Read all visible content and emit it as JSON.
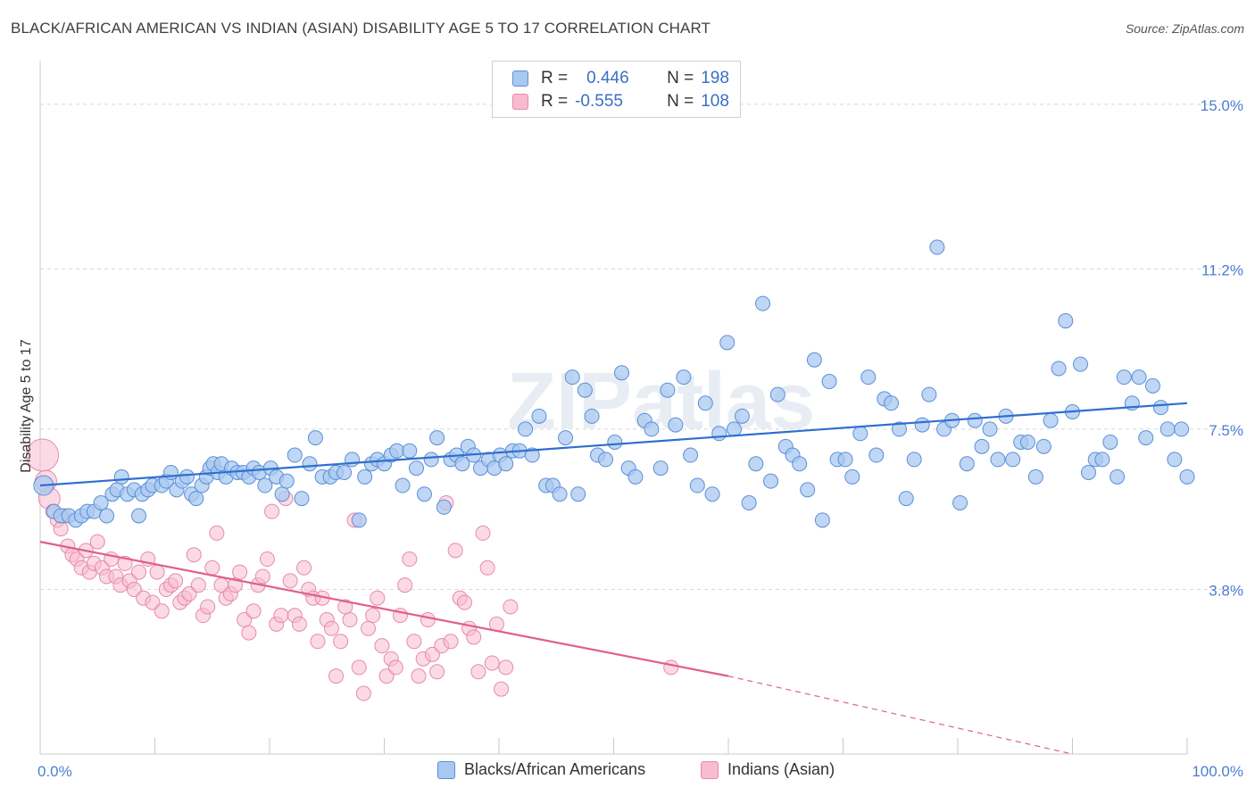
{
  "title": "BLACK/AFRICAN AMERICAN VS INDIAN (ASIAN) DISABILITY AGE 5 TO 17 CORRELATION CHART",
  "source": "Source: ZipAtlas.com",
  "watermark": "ZIPatlas",
  "legend": {
    "rows": [
      {
        "r_label": "R =",
        "r_value": "0.446",
        "n_label": "N =",
        "n_value": "198"
      },
      {
        "r_label": "R =",
        "r_value": "-0.555",
        "n_label": "N =",
        "n_value": "108"
      }
    ]
  },
  "bottom_legend": [
    "Blacks/African Americans",
    "Indians (Asian)"
  ],
  "colors": {
    "blue_fill": "#a9c8f0",
    "blue_stroke": "#5a8fd8",
    "blue_line": "#2f6fcf",
    "pink_fill": "#f7bcd0",
    "pink_stroke": "#e68aa8",
    "pink_line": "#e0608a",
    "tick_text": "#4a7fd0",
    "grid": "#d8d8d8"
  },
  "chart_data": {
    "type": "scatter",
    "title": "BLACK/AFRICAN AMERICAN VS INDIAN (ASIAN) DISABILITY AGE 5 TO 17 CORRELATION CHART",
    "xlabel": "",
    "ylabel": "Disability Age 5 to 17",
    "xlim": [
      0,
      100
    ],
    "ylim": [
      0,
      15.8
    ],
    "x_ticks": [
      "0.0%",
      "100.0%"
    ],
    "y_ticks": [
      {
        "value": 3.8,
        "label": "3.8%"
      },
      {
        "value": 7.5,
        "label": "7.5%"
      },
      {
        "value": 11.2,
        "label": "11.2%"
      },
      {
        "value": 15.0,
        "label": "15.0%"
      }
    ],
    "grid": true,
    "legend_position": "top-center",
    "series": [
      {
        "name": "Blacks/African Americans",
        "R": 0.446,
        "N": 198,
        "trend": {
          "x": [
            0,
            100
          ],
          "y": [
            6.2,
            8.1
          ]
        },
        "points": [
          [
            0.3,
            6.2
          ],
          [
            1.2,
            5.6
          ],
          [
            1.8,
            5.5
          ],
          [
            2.5,
            5.5
          ],
          [
            3.1,
            5.4
          ],
          [
            3.6,
            5.5
          ],
          [
            4.1,
            5.6
          ],
          [
            4.7,
            5.6
          ],
          [
            5.3,
            5.8
          ],
          [
            5.8,
            5.5
          ],
          [
            6.3,
            6.0
          ],
          [
            6.7,
            6.1
          ],
          [
            7.1,
            6.4
          ],
          [
            7.6,
            6.0
          ],
          [
            8.2,
            6.1
          ],
          [
            8.6,
            5.5
          ],
          [
            8.9,
            6.0
          ],
          [
            9.4,
            6.1
          ],
          [
            9.8,
            6.2
          ],
          [
            10.6,
            6.2
          ],
          [
            11.0,
            6.3
          ],
          [
            11.4,
            6.5
          ],
          [
            11.9,
            6.1
          ],
          [
            12.4,
            6.3
          ],
          [
            12.8,
            6.4
          ],
          [
            13.2,
            6.0
          ],
          [
            13.6,
            5.9
          ],
          [
            14.1,
            6.2
          ],
          [
            14.5,
            6.4
          ],
          [
            14.8,
            6.6
          ],
          [
            15.1,
            6.7
          ],
          [
            15.5,
            6.5
          ],
          [
            15.8,
            6.7
          ],
          [
            16.2,
            6.4
          ],
          [
            16.7,
            6.6
          ],
          [
            17.2,
            6.5
          ],
          [
            17.7,
            6.5
          ],
          [
            18.2,
            6.4
          ],
          [
            18.6,
            6.6
          ],
          [
            19.1,
            6.5
          ],
          [
            19.6,
            6.2
          ],
          [
            20.1,
            6.6
          ],
          [
            20.6,
            6.4
          ],
          [
            21.1,
            6.0
          ],
          [
            21.5,
            6.3
          ],
          [
            22.2,
            6.9
          ],
          [
            22.8,
            5.9
          ],
          [
            23.5,
            6.7
          ],
          [
            24.0,
            7.3
          ],
          [
            24.6,
            6.4
          ],
          [
            25.3,
            6.4
          ],
          [
            25.8,
            6.5
          ],
          [
            26.5,
            6.5
          ],
          [
            27.2,
            6.8
          ],
          [
            27.8,
            5.4
          ],
          [
            28.3,
            6.4
          ],
          [
            28.9,
            6.7
          ],
          [
            29.4,
            6.8
          ],
          [
            30.0,
            6.7
          ],
          [
            30.6,
            6.9
          ],
          [
            31.1,
            7.0
          ],
          [
            31.6,
            6.2
          ],
          [
            32.2,
            7.0
          ],
          [
            32.8,
            6.6
          ],
          [
            33.5,
            6.0
          ],
          [
            34.1,
            6.8
          ],
          [
            34.6,
            7.3
          ],
          [
            35.2,
            5.7
          ],
          [
            35.8,
            6.8
          ],
          [
            36.3,
            6.9
          ],
          [
            36.8,
            6.7
          ],
          [
            37.3,
            7.1
          ],
          [
            37.8,
            6.9
          ],
          [
            38.4,
            6.6
          ],
          [
            39.1,
            6.8
          ],
          [
            39.6,
            6.6
          ],
          [
            40.1,
            6.9
          ],
          [
            40.6,
            6.7
          ],
          [
            41.2,
            7.0
          ],
          [
            41.8,
            7.0
          ],
          [
            42.3,
            7.5
          ],
          [
            42.9,
            6.9
          ],
          [
            43.5,
            7.8
          ],
          [
            44.1,
            6.2
          ],
          [
            44.7,
            6.2
          ],
          [
            45.3,
            6.0
          ],
          [
            45.8,
            7.3
          ],
          [
            46.4,
            8.7
          ],
          [
            46.9,
            6.0
          ],
          [
            47.5,
            8.4
          ],
          [
            48.1,
            7.8
          ],
          [
            48.6,
            6.9
          ],
          [
            49.3,
            6.8
          ],
          [
            50.1,
            7.2
          ],
          [
            50.7,
            8.8
          ],
          [
            51.3,
            6.6
          ],
          [
            51.9,
            6.4
          ],
          [
            52.7,
            7.7
          ],
          [
            53.3,
            7.5
          ],
          [
            54.1,
            6.6
          ],
          [
            54.7,
            8.4
          ],
          [
            55.4,
            7.6
          ],
          [
            56.1,
            8.7
          ],
          [
            56.7,
            6.9
          ],
          [
            57.3,
            6.2
          ],
          [
            58.0,
            8.1
          ],
          [
            58.6,
            6.0
          ],
          [
            59.2,
            7.4
          ],
          [
            59.9,
            9.5
          ],
          [
            60.5,
            7.5
          ],
          [
            61.2,
            7.8
          ],
          [
            61.8,
            5.8
          ],
          [
            62.4,
            6.7
          ],
          [
            63.0,
            10.4
          ],
          [
            63.7,
            6.3
          ],
          [
            64.3,
            8.3
          ],
          [
            65.0,
            7.1
          ],
          [
            65.6,
            6.9
          ],
          [
            66.2,
            6.7
          ],
          [
            66.9,
            6.1
          ],
          [
            67.5,
            9.1
          ],
          [
            68.2,
            5.4
          ],
          [
            68.8,
            8.6
          ],
          [
            69.5,
            6.8
          ],
          [
            70.2,
            6.8
          ],
          [
            70.8,
            6.4
          ],
          [
            71.5,
            7.4
          ],
          [
            72.2,
            8.7
          ],
          [
            72.9,
            6.9
          ],
          [
            73.6,
            8.2
          ],
          [
            74.2,
            8.1
          ],
          [
            74.9,
            7.5
          ],
          [
            75.5,
            5.9
          ],
          [
            76.2,
            6.8
          ],
          [
            76.9,
            7.6
          ],
          [
            77.5,
            8.3
          ],
          [
            78.2,
            11.7
          ],
          [
            78.8,
            7.5
          ],
          [
            79.5,
            7.7
          ],
          [
            80.2,
            5.8
          ],
          [
            80.8,
            6.7
          ],
          [
            81.5,
            7.7
          ],
          [
            82.1,
            7.1
          ],
          [
            82.8,
            7.5
          ],
          [
            83.5,
            6.8
          ],
          [
            84.2,
            7.8
          ],
          [
            84.8,
            6.8
          ],
          [
            85.5,
            7.2
          ],
          [
            86.1,
            7.2
          ],
          [
            86.8,
            6.4
          ],
          [
            87.5,
            7.1
          ],
          [
            88.1,
            7.7
          ],
          [
            88.8,
            8.9
          ],
          [
            89.4,
            10.0
          ],
          [
            90.0,
            7.9
          ],
          [
            90.7,
            9.0
          ],
          [
            91.4,
            6.5
          ],
          [
            92.0,
            6.8
          ],
          [
            92.6,
            6.8
          ],
          [
            93.3,
            7.2
          ],
          [
            93.9,
            6.4
          ],
          [
            94.5,
            8.7
          ],
          [
            95.2,
            8.1
          ],
          [
            95.8,
            8.7
          ],
          [
            96.4,
            7.3
          ],
          [
            97.0,
            8.5
          ],
          [
            97.7,
            8.0
          ],
          [
            98.3,
            7.5
          ],
          [
            98.9,
            6.8
          ],
          [
            99.5,
            7.5
          ],
          [
            100.0,
            6.4
          ]
        ]
      },
      {
        "name": "Indians (Asian)",
        "R": -0.555,
        "N": 108,
        "trend": {
          "x": [
            0,
            60
          ],
          "y": [
            4.9,
            1.8
          ],
          "dashed_to": {
            "x": 90,
            "y": 0
          }
        },
        "points": [
          [
            0.2,
            6.9
          ],
          [
            0.5,
            6.3
          ],
          [
            0.8,
            5.9
          ],
          [
            1.1,
            5.6
          ],
          [
            1.5,
            5.4
          ],
          [
            1.8,
            5.2
          ],
          [
            2.1,
            5.5
          ],
          [
            2.4,
            4.8
          ],
          [
            2.8,
            4.6
          ],
          [
            3.2,
            4.5
          ],
          [
            3.6,
            4.3
          ],
          [
            4.0,
            4.7
          ],
          [
            4.3,
            4.2
          ],
          [
            4.7,
            4.4
          ],
          [
            5.0,
            4.9
          ],
          [
            5.4,
            4.3
          ],
          [
            5.8,
            4.1
          ],
          [
            6.2,
            4.5
          ],
          [
            6.6,
            4.1
          ],
          [
            7.0,
            3.9
          ],
          [
            7.4,
            4.4
          ],
          [
            7.8,
            4.0
          ],
          [
            8.2,
            3.8
          ],
          [
            8.6,
            4.2
          ],
          [
            9.0,
            3.6
          ],
          [
            9.4,
            4.5
          ],
          [
            9.8,
            3.5
          ],
          [
            10.2,
            4.2
          ],
          [
            10.6,
            3.3
          ],
          [
            11.0,
            3.8
          ],
          [
            11.4,
            3.9
          ],
          [
            11.8,
            4.0
          ],
          [
            12.2,
            3.5
          ],
          [
            12.6,
            3.6
          ],
          [
            13.0,
            3.7
          ],
          [
            13.4,
            4.6
          ],
          [
            13.8,
            3.9
          ],
          [
            14.2,
            3.2
          ],
          [
            14.6,
            3.4
          ],
          [
            15.0,
            4.3
          ],
          [
            15.4,
            5.1
          ],
          [
            15.8,
            3.9
          ],
          [
            16.2,
            3.6
          ],
          [
            16.6,
            3.7
          ],
          [
            17.0,
            3.9
          ],
          [
            17.4,
            4.2
          ],
          [
            17.8,
            3.1
          ],
          [
            18.2,
            2.8
          ],
          [
            18.6,
            3.3
          ],
          [
            19.0,
            3.9
          ],
          [
            19.4,
            4.1
          ],
          [
            19.8,
            4.5
          ],
          [
            20.2,
            5.6
          ],
          [
            20.6,
            3.0
          ],
          [
            21.0,
            3.2
          ],
          [
            21.4,
            5.9
          ],
          [
            21.8,
            4.0
          ],
          [
            22.2,
            3.2
          ],
          [
            22.6,
            3.0
          ],
          [
            23.0,
            4.3
          ],
          [
            23.4,
            3.8
          ],
          [
            23.8,
            3.6
          ],
          [
            24.2,
            2.6
          ],
          [
            24.6,
            3.6
          ],
          [
            25.0,
            3.1
          ],
          [
            25.4,
            2.9
          ],
          [
            25.8,
            1.8
          ],
          [
            26.2,
            2.6
          ],
          [
            26.6,
            3.4
          ],
          [
            27.0,
            3.1
          ],
          [
            27.4,
            5.4
          ],
          [
            27.8,
            2.0
          ],
          [
            28.2,
            1.4
          ],
          [
            28.6,
            2.9
          ],
          [
            29.0,
            3.2
          ],
          [
            29.4,
            3.6
          ],
          [
            29.8,
            2.5
          ],
          [
            30.2,
            1.8
          ],
          [
            30.6,
            2.2
          ],
          [
            31.0,
            2.0
          ],
          [
            31.4,
            3.2
          ],
          [
            31.8,
            3.9
          ],
          [
            32.2,
            4.5
          ],
          [
            32.6,
            2.6
          ],
          [
            33.0,
            1.8
          ],
          [
            33.4,
            2.2
          ],
          [
            33.8,
            3.1
          ],
          [
            34.2,
            2.3
          ],
          [
            34.6,
            1.9
          ],
          [
            35.0,
            2.5
          ],
          [
            35.4,
            5.8
          ],
          [
            35.8,
            2.6
          ],
          [
            36.2,
            4.7
          ],
          [
            36.6,
            3.6
          ],
          [
            37.0,
            3.5
          ],
          [
            37.4,
            2.9
          ],
          [
            37.8,
            2.7
          ],
          [
            38.2,
            1.9
          ],
          [
            38.6,
            5.1
          ],
          [
            39.0,
            4.3
          ],
          [
            39.4,
            2.1
          ],
          [
            39.8,
            3.0
          ],
          [
            40.2,
            1.5
          ],
          [
            40.6,
            2.0
          ],
          [
            41.0,
            3.4
          ],
          [
            55.0,
            2.0
          ]
        ]
      }
    ]
  }
}
